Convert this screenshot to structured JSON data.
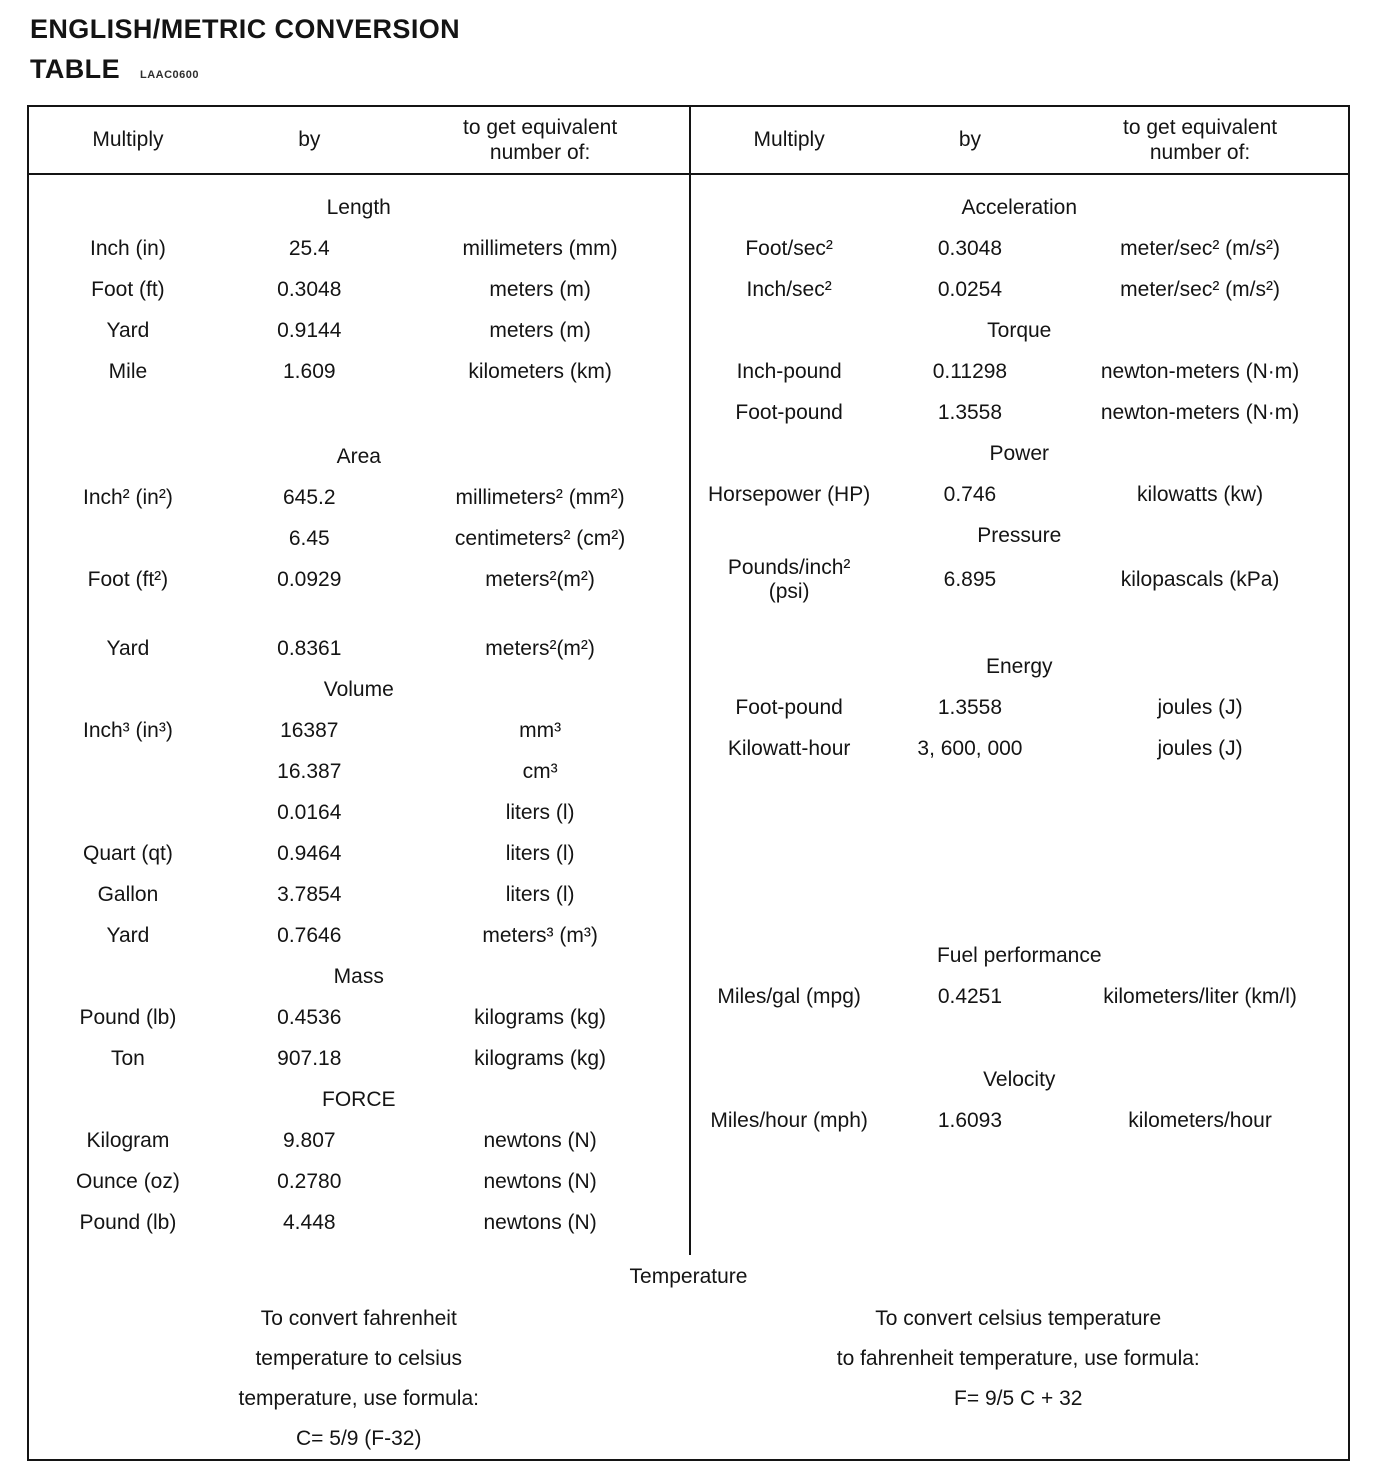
{
  "page": {
    "title_line1": "ENGLISH/METRIC CONVERSION",
    "title_line2": "TABLE",
    "doc_code": "LAAC0600"
  },
  "header": {
    "multiply": "Multiply",
    "by": "by",
    "to_get": "to get equivalent\nnumber of:"
  },
  "left_sections": [
    {
      "title": "Length",
      "rows": [
        {
          "multiply": "Inch (in)",
          "by": "25.4",
          "result": "millimeters (mm)"
        },
        {
          "multiply": "Foot (ft)",
          "by": "0.3048",
          "result": "meters (m)"
        },
        {
          "multiply": "Yard",
          "by": "0.9144",
          "result": "meters (m)"
        },
        {
          "multiply": "Mile",
          "by": "1.609",
          "result": "kilometers (km)"
        }
      ]
    },
    {
      "title": "Area",
      "rows": [
        {
          "multiply": "Inch² (in²)",
          "by": "645.2",
          "result": "millimeters² (mm²)"
        },
        {
          "multiply": "",
          "by": "6.45",
          "result": "centimeters² (cm²)"
        },
        {
          "multiply": "Foot (ft²)",
          "by": "0.0929",
          "result": "meters²(m²)"
        },
        {
          "multiply": "Yard",
          "by": "0.8361",
          "result": "meters²(m²)"
        }
      ]
    },
    {
      "title": "Volume",
      "rows": [
        {
          "multiply": "Inch³ (in³)",
          "by": "16387",
          "result": "mm³"
        },
        {
          "multiply": "",
          "by": "16.387",
          "result": "cm³"
        },
        {
          "multiply": "",
          "by": "0.0164",
          "result": "liters (l)"
        },
        {
          "multiply": "Quart (qt)",
          "by": "0.9464",
          "result": "liters (l)"
        },
        {
          "multiply": "Gallon",
          "by": "3.7854",
          "result": "liters (l)"
        },
        {
          "multiply": "Yard",
          "by": "0.7646",
          "result": "meters³ (m³)"
        }
      ]
    },
    {
      "title": "Mass",
      "rows": [
        {
          "multiply": "Pound (lb)",
          "by": "0.4536",
          "result": "kilograms (kg)"
        },
        {
          "multiply": "Ton",
          "by": "907.18",
          "result": "kilograms (kg)"
        }
      ]
    },
    {
      "title": "FORCE",
      "rows": [
        {
          "multiply": "Kilogram",
          "by": "9.807",
          "result": "newtons (N)"
        },
        {
          "multiply": "Ounce (oz)",
          "by": "0.2780",
          "result": "newtons (N)"
        },
        {
          "multiply": "Pound (lb)",
          "by": "4.448",
          "result": "newtons (N)"
        }
      ]
    }
  ],
  "right_sections": [
    {
      "title": "Acceleration",
      "rows": [
        {
          "multiply": "Foot/sec²",
          "by": "0.3048",
          "result": "meter/sec² (m/s²)"
        },
        {
          "multiply": "Inch/sec²",
          "by": "0.0254",
          "result": "meter/sec² (m/s²)"
        }
      ]
    },
    {
      "title": "Torque",
      "rows": [
        {
          "multiply": "Inch-pound",
          "by": "0.11298",
          "result": "newton-meters (N·m)"
        },
        {
          "multiply": "Foot-pound",
          "by": "1.3558",
          "result": "newton-meters (N·m)"
        }
      ]
    },
    {
      "title": "Power",
      "rows": [
        {
          "multiply": "Horsepower (HP)",
          "by": "0.746",
          "result": "kilowatts (kw)"
        }
      ]
    },
    {
      "title": "Pressure",
      "rows": [
        {
          "multiply": "Pounds/inch²\n(psi)",
          "by": "6.895",
          "result": "kilopascals (kPa)"
        }
      ]
    },
    {
      "title": "Energy",
      "rows": [
        {
          "multiply": "Foot-pound",
          "by": "1.3558",
          "result": "joules (J)"
        },
        {
          "multiply": "Kilowatt-hour",
          "by": "3, 600, 000",
          "result": "joules (J)"
        }
      ]
    },
    {
      "title": "Fuel performance",
      "rows": [
        {
          "multiply": "Miles/gal (mpg)",
          "by": "0.4251",
          "result": "kilometers/liter (km/l)"
        }
      ]
    },
    {
      "title": "Velocity",
      "rows": [
        {
          "multiply": "Miles/hour (mph)",
          "by": "1.6093",
          "result": "kilometers/hour"
        }
      ]
    }
  ],
  "temperature": {
    "title": "Temperature",
    "left_lines": [
      "To convert fahrenheit",
      "temperature to celsius",
      "temperature, use formula:",
      "C= 5/9 (F-32)"
    ],
    "right_lines": [
      "To convert celsius temperature",
      "to fahrenheit temperature, use formula:",
      "F= 9/5 C + 32"
    ]
  }
}
